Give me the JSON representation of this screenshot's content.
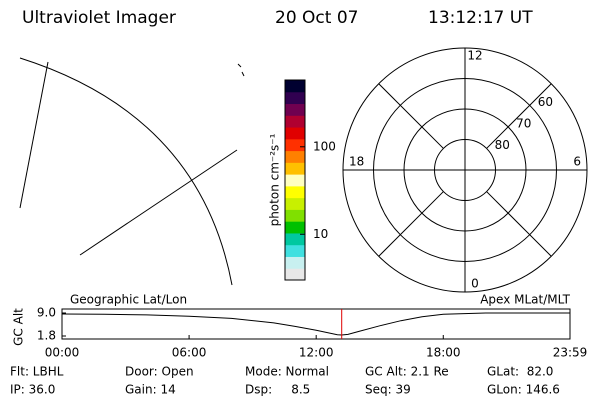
{
  "header": {
    "instrument": "Ultraviolet Imager",
    "date": "20 Oct 07",
    "time": "13:12:17 UT"
  },
  "colorbar": {
    "label": "photon cm⁻²s⁻¹",
    "log": true,
    "lim": [
      3,
      580
    ],
    "ticks": [
      10,
      100
    ],
    "colors": [
      "#e8e8e8",
      "#c8f0f0",
      "#40e0e0",
      "#00c8a0",
      "#00c000",
      "#80e000",
      "#c8f000",
      "#ffff00",
      "#ffffc0",
      "#ffc000",
      "#ff8000",
      "#ff3000",
      "#e00000",
      "#b00030",
      "#700050",
      "#300050",
      "#000030"
    ]
  },
  "polar": {
    "lat_lim": [
      50,
      90
    ],
    "lat_rings": [
      60,
      70,
      80
    ],
    "mlt_labels": [
      0,
      6,
      12,
      18
    ],
    "mlt_grid": [
      0,
      3,
      6,
      9,
      12,
      15,
      18,
      21
    ]
  },
  "altitude": {
    "ylabel": "GC Alt",
    "left_title": "Geographic Lat/Lon",
    "right_title": "Apex MLat/MLT",
    "xlim": [
      0,
      23.983
    ],
    "xticks": [
      {
        "value": 0,
        "label": "00:00"
      },
      {
        "value": 6,
        "label": "06:00"
      },
      {
        "value": 12,
        "label": "12:00"
      },
      {
        "value": 18,
        "label": "18:00"
      },
      {
        "value": 23.983,
        "label": "23:59"
      }
    ],
    "ylim": [
      1.8,
      9.0
    ],
    "yticks": [
      {
        "value": 9,
        "label": "9.0"
      },
      {
        "value": 1.8,
        "label": "1.8"
      }
    ],
    "x": [
      0,
      2,
      4,
      6,
      8,
      10,
      11,
      12,
      12.5,
      13,
      13.2,
      13.5,
      14,
      15,
      16,
      17,
      18,
      20,
      22,
      23.983
    ],
    "values": [
      8.7,
      8.6,
      8.4,
      8.0,
      7.3,
      5.9,
      4.8,
      3.6,
      2.9,
      2.2,
      2.1,
      2.3,
      3.2,
      5.0,
      6.6,
      7.8,
      8.6,
      9.0,
      9.0,
      9.0
    ],
    "color": "#000000",
    "current_time": 13.205,
    "current_color": "#e00000"
  },
  "status": [
    [
      "Flt: LBHL",
      "Door: Open",
      "Mode: Normal",
      "GC Alt: 2.1 Re",
      "GLat:  82.0"
    ],
    [
      "IP: 36.0",
      "Gain: 14",
      "Dsp:     8.5",
      "Seq: 39",
      "GLon: 146.6"
    ]
  ]
}
